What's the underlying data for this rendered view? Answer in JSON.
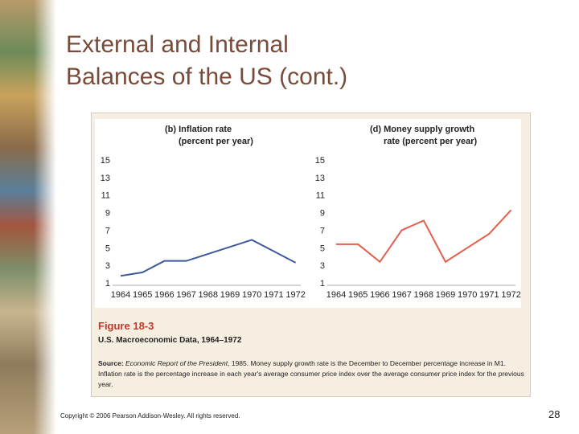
{
  "slide": {
    "title_lines": [
      "External and Internal",
      "Balances of the US (cont.)"
    ],
    "figure_label": "Figure 18-3",
    "figure_caption": "U.S. Macroeconomic Data, 1964–1972",
    "source_label": "Source:",
    "source_title": "Economic Report of the President",
    "source_text": ", 1985. Money supply growth rate is the December to December percentage increase in M1. Inflation rate is the percentage increase in each year's average consumer price index over the average consumer price index for the previous year.",
    "copyright": "Copyright © 2006 Pearson Addison-Wesley. All rights reserved.",
    "page_number": "28"
  },
  "chart_data": [
    {
      "type": "line",
      "title": "(b) Inflation rate",
      "subtitle": "(percent per year)",
      "categories": [
        "1964",
        "1965",
        "1966",
        "1967",
        "1968",
        "1969",
        "1970",
        "1971",
        "1972"
      ],
      "values": [
        1.8,
        2.2,
        3.5,
        3.5,
        4.3,
        5.1,
        5.9,
        4.6,
        3.3
      ],
      "color": "#3d5a9e",
      "ylim": [
        1,
        15
      ],
      "yticks": [
        1,
        3,
        5,
        7,
        9,
        11,
        13,
        15
      ]
    },
    {
      "type": "line",
      "title": "(d) Money supply growth",
      "subtitle": "rate (percent per year)",
      "categories": [
        "1964",
        "1965",
        "1966",
        "1967",
        "1968",
        "1969",
        "1970",
        "1971",
        "1972"
      ],
      "values": [
        5.4,
        5.4,
        3.4,
        7.0,
        8.1,
        3.4,
        5.0,
        6.6,
        9.3
      ],
      "color": "#e2604e",
      "ylim": [
        1,
        15
      ],
      "yticks": [
        1,
        3,
        5,
        7,
        9,
        11,
        13,
        15
      ]
    }
  ]
}
